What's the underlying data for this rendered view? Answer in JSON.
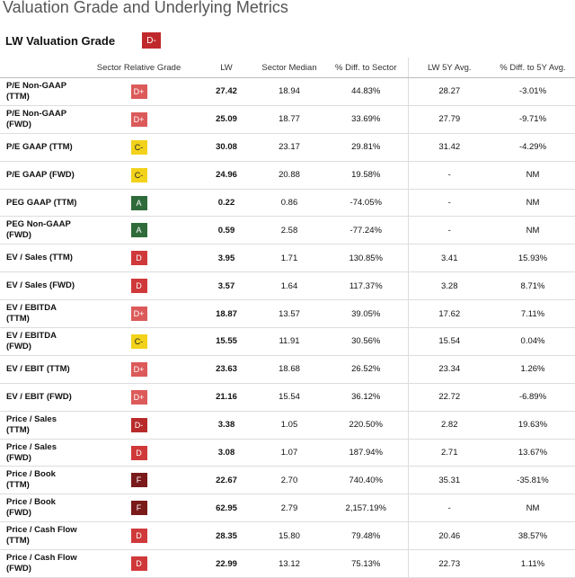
{
  "title": "Valuation Grade and Underlying Metrics",
  "overall": {
    "label": "LW Valuation Grade",
    "grade": "D-"
  },
  "columns": [
    "Sector Relative Grade",
    "LW",
    "Sector Median",
    "% Diff. to Sector",
    "LW 5Y Avg.",
    "% Diff. to 5Y Avg."
  ],
  "rows": [
    {
      "metric": "P/E Non-GAAP (TTM)",
      "grade": "D+",
      "lw": "27.42",
      "median": "18.94",
      "diff": "44.83%",
      "avg": "28.27",
      "diff5": "-3.01%"
    },
    {
      "metric": "P/E Non-GAAP (FWD)",
      "grade": "D+",
      "lw": "25.09",
      "median": "18.77",
      "diff": "33.69%",
      "avg": "27.79",
      "diff5": "-9.71%"
    },
    {
      "metric": "P/E GAAP (TTM)",
      "grade": "C-",
      "lw": "30.08",
      "median": "23.17",
      "diff": "29.81%",
      "avg": "31.42",
      "diff5": "-4.29%"
    },
    {
      "metric": "P/E GAAP (FWD)",
      "grade": "C-",
      "lw": "24.96",
      "median": "20.88",
      "diff": "19.58%",
      "avg": "-",
      "diff5": "NM"
    },
    {
      "metric": "PEG GAAP (TTM)",
      "grade": "A",
      "lw": "0.22",
      "median": "0.86",
      "diff": "-74.05%",
      "avg": "-",
      "diff5": "NM"
    },
    {
      "metric": "PEG Non-GAAP (FWD)",
      "grade": "A",
      "lw": "0.59",
      "median": "2.58",
      "diff": "-77.24%",
      "avg": "-",
      "diff5": "NM"
    },
    {
      "metric": "EV / Sales (TTM)",
      "grade": "D",
      "lw": "3.95",
      "median": "1.71",
      "diff": "130.85%",
      "avg": "3.41",
      "diff5": "15.93%"
    },
    {
      "metric": "EV / Sales (FWD)",
      "grade": "D",
      "lw": "3.57",
      "median": "1.64",
      "diff": "117.37%",
      "avg": "3.28",
      "diff5": "8.71%"
    },
    {
      "metric": "EV / EBITDA (TTM)",
      "grade": "D+",
      "lw": "18.87",
      "median": "13.57",
      "diff": "39.05%",
      "avg": "17.62",
      "diff5": "7.11%"
    },
    {
      "metric": "EV / EBITDA (FWD)",
      "grade": "C-",
      "lw": "15.55",
      "median": "11.91",
      "diff": "30.56%",
      "avg": "15.54",
      "diff5": "0.04%"
    },
    {
      "metric": "EV / EBIT (TTM)",
      "grade": "D+",
      "lw": "23.63",
      "median": "18.68",
      "diff": "26.52%",
      "avg": "23.34",
      "diff5": "1.26%"
    },
    {
      "metric": "EV / EBIT (FWD)",
      "grade": "D+",
      "lw": "21.16",
      "median": "15.54",
      "diff": "36.12%",
      "avg": "22.72",
      "diff5": "-6.89%"
    },
    {
      "metric": "Price / Sales (TTM)",
      "grade": "D-",
      "lw": "3.38",
      "median": "1.05",
      "diff": "220.50%",
      "avg": "2.82",
      "diff5": "19.63%"
    },
    {
      "metric": "Price / Sales (FWD)",
      "grade": "D",
      "lw": "3.08",
      "median": "1.07",
      "diff": "187.94%",
      "avg": "2.71",
      "diff5": "13.67%"
    },
    {
      "metric": "Price / Book (TTM)",
      "grade": "F",
      "lw": "22.67",
      "median": "2.70",
      "diff": "740.40%",
      "avg": "35.31",
      "diff5": "-35.81%"
    },
    {
      "metric": "Price / Book (FWD)",
      "grade": "F",
      "lw": "62.95",
      "median": "2.79",
      "diff": "2,157.19%",
      "avg": "-",
      "diff5": "NM"
    },
    {
      "metric": "Price / Cash Flow (TTM)",
      "grade": "D",
      "lw": "28.35",
      "median": "15.80",
      "diff": "79.48%",
      "avg": "20.46",
      "diff5": "38.57%"
    },
    {
      "metric": "Price / Cash Flow (FWD)",
      "grade": "D",
      "lw": "22.99",
      "median": "13.12",
      "diff": "75.13%",
      "avg": "22.73",
      "diff5": "1.11%"
    }
  ],
  "grade_colors": {
    "D+": "#dc5a5a",
    "D": "#d0393a",
    "D-": "#b92b2b",
    "F": "#7a1a1a",
    "C-": "#f2d21a",
    "A": "#2f6b3a"
  }
}
